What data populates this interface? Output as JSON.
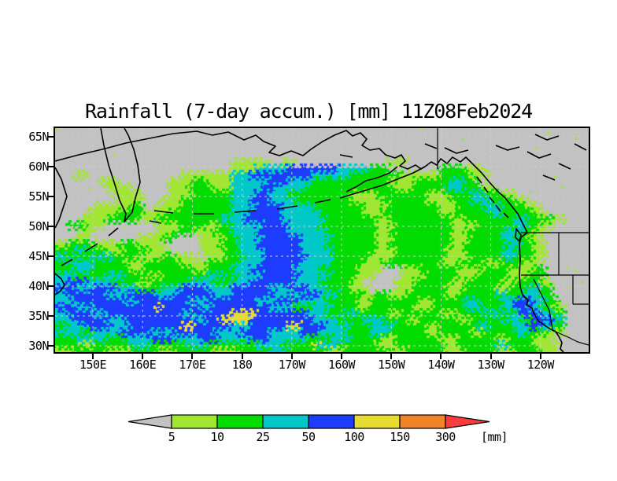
{
  "title": "Rainfall (7-day accum.) [mm] 11Z08Feb2024",
  "axes": {
    "lat_labels": [
      "65N",
      "60N",
      "55N",
      "50N",
      "45N",
      "40N",
      "35N",
      "30N"
    ],
    "lat_values": [
      65,
      60,
      55,
      50,
      45,
      40,
      35,
      30
    ],
    "lon_labels": [
      "150E",
      "160E",
      "170E",
      "180",
      "170W",
      "160W",
      "150W",
      "140W",
      "130W",
      "120W"
    ],
    "lon_values_deg_east": [
      150,
      160,
      170,
      180,
      190,
      200,
      210,
      220,
      230,
      240
    ]
  },
  "colorbar": {
    "tick_labels": [
      "5",
      "10",
      "25",
      "50",
      "100",
      "150",
      "300"
    ],
    "unit": "[mm]",
    "below_color": "#c2c2c2",
    "segment_colors": [
      "#a0e632",
      "#00dc00",
      "#00c8c8",
      "#1e3cff",
      "#e6dc32",
      "#f08228"
    ],
    "above_color": "#fa3c3c"
  },
  "map": {
    "background": "#c2c2c2",
    "grid_color": "#cdcdcd",
    "coast_color": "#000000",
    "palette": {
      ".": "#c2c2c2",
      "a": "#a0e632",
      "b": "#00dc00",
      "c": "#00c8c8",
      "d": "#1e3cff",
      "e": "#e6dc32",
      "f": "#f08228",
      "g": "#fa3c3c"
    },
    "field_rows": [
      "",
      "",
      "",
      "",
      "",
      "............................aaaaaa..aa...............aaa",
      "............................aaaacccccddddddddcccccbbb........bbbbaaa",
      "...aa...............aaaaaaaacccddddddddddccccccbbbbbbbbaaaaaabbbbbaaa",
      ".......aaa........aaaabbaaaaccccccdddccccbbbbbbbbbbbbaaaabbbbbbccbb",
      "........aaaa......aaabbbbaaacccccddcccccbbbbbbbbbbbbbbaaabbbbbcccbbbaa",
      ".........aaaaa....aaaabbbbbbccccddcccbbbbbbbbbbaaaabbbbbbbbaaabbbbccbbbaa",
      "..........aaaa...aaabbbbbbbbcccdddccccbbbbbbbbbaaaaabbbbbbbaaaabbbcccbbbbaa",
      "......aaaaaabb..aaaabbbbbbbbccccddddcccccbbbbbbbbaaaabbbbbbbbaaabbbbcccbbbbaa",
      ".....aaaaabbbbaaaabbbbbbbbbbcccdddddccccccbbbbbbbaaabbbbbbbbbaabbbbbbccbbbbbaa",
      "....aaaabbbbbaaabbbbbbbbbbccccddddddcccccccbbbbbbbbaabbbbbbbbbbaabbbbbbbbccbbbbaa",
      "..bbbaaa........aaaabbbbaabbcccccddddcccccbbbbbbbbbaaabbbbbbbbbaaaabbbbbbccbbaa",
      "....aa..........aaabbbaaabbbccccdddddccccccbbbbbbbbaabbbbbbbbbbaabbbbbbcccbbaa",
      "...aa........aaaabb....aaaabbccccddddddcccccbbbbbbbaaabbbbbbbbbaaabbbbbccbbaa",
      "aabbbbaaaabbbaaaa......aaabbbcccdddddddccccbbbbbbbbaabbbbbbbbbbaabbbbbbbccbbaa",
      "bbbccbbbaaabbbbaaa.....aaaabbccccddddddcccccbbbbbbbaaabbbbbbbbaaabbbbbbccbbbaa",
      "ccbbbbcccbbbbaaaabbaaa..aaabbbcccdddddddccccbbbbbbaaaabbbbbbbbaaaabbbbbccbbbaa",
      "bbccccbbbbbaaabbbbbbaaaabbbbbccccddddddcccccbbbbbaaabbbbbbbbbaaabbbbaaabbbaaa",
      "bbbcccbbbbbbaabbbbbbbbaabbbbcccdddddddccccbbbbbbaaaa...aaabbbbbbaaaabbbbaaaabb",
      "cccbbbbbcccbbbbaabbbbbbbcccbbccccddddddcccccbbbbaaa....aaaabbbbbaaabbbbbaaabbb",
      "ccdddccccbbbbaabbbbbbccccbbbcccdddddddccccbbbbbaa.....aaabbbbbbaabbbbbbaabbbbaa",
      "dddcccddddcccbbbbcccddddccccddddddcccdddcccbbbbaaa....aaabbbbbaaabbbbbaabbbccbb",
      "ccddddddcccdddddcccddddddcccdddddddccccdddcccbbbbaabbaaabbbbbbaabbbbbbccbbcccbb",
      "cccddddddddccddddddddcccddddddddcccddddccccbbbbbaabbbbbbbbaabbbbbccbbbbccdddccbb",
      "dddcccddddddddddeddddddccdddddddddccccbbbcccbbbbaabbbbbbbaaabbbbbcccbbbccddccbbaa",
      "ccddddccddddddddddddccddddddeeeeddddddddcccbbbccbbbbbaabbbbbbaaabbbbcccbbcdddccbb",
      "cccdddddcccdddddddddddccddeeeeeddddddddddccccbbbbcccbbbbaabbbbbbaabbbbbcccbbdddcc",
      "bbcccddddcccddddddddeeddddddcccddddddeeddddccccbbbccccbbbbbaabbbbbbccbbbbccddccbb",
      "ccccbbccccdddddccccddddddccccdddddcccccdddccccbbbbcccbbbbbbaabbbbbaabbbbbccbbbaaa",
      "bbbcccccbbbccccddddccccdddcccccdddccccccbbbbcccbbbbbaabbbbbbbaaabbbbbbaabbbbaaa",
      "bbbbaabbbbbbcccbbbbbbcccbbbbbbbbccccbbbbbecccbbbbbbaaabbbbbbbbaabbbbbbccbbbbaaaa",
      "aaabbbbbaaaabbbbaaabbbbbbaaaabbbbbcccbbbbbbaaabbbbbbbaaabbbbbbaaabbbbbaaabbbbaaa"
    ],
    "coast_paths": [
      "M0,42 L30,34 L60,27 L90,19 L120,13 L150,7 L180,4 L200,9 L220,5 L240,15 L255,9 L265,17 L280,23 L272,31 L285,35 L300,29 L315,35 L325,27 L340,17 L355,9 L370,3 L378,10 L388,6 L396,14 L390,22 L400,28 L412,26 L420,34 L432,38 L440,34 L445,42 L438,48 L448,52 L458,47 L465,52 L470,49",
      "M58,0 L62,22 L68,47 L76,72 L82,92 L90,109 L88,119 L98,107 L102,89 L108,69 L105,47 L100,27 L93,9 L88,0",
      "M0,50 L8,65 L15,87 L5,117 L0,127",
      "M80,127 L68,137 M54,147 L38,157 M22,167 L8,175",
      "M0,185 L8,192 L12,200 L6,208 L0,212",
      "M362,34 L378,37",
      "M470,49 L455,57 L435,65 L415,73 L395,79 L375,85 L362,89",
      "M435,49 L425,57 L410,63 L395,67 L382,75 L370,81",
      "M350,91 L330,95 M308,99 L282,103 M255,105 L228,107 M202,109 L176,109 M150,108 L126,105 M120,118 L135,121",
      "M470,49 L478,43 L485,47 L490,39 L498,45 L505,37 L515,43 L522,37 L530,45 L542,57 L552,69 L562,80 L572,89 L580,99 L588,109 L594,121 L600,133 L592,139 L590,147 L591,167 L590,187 L591,202 L594,212 L601,219 L599,225 L606,229 L608,235 L614,245 L622,251 L630,256 L636,259 L640,265 L644,273 L642,281 L646,285",
      "M586,128 L592,136 L590,144 L585,139 Z",
      "M545,75 L550,82 M552,88 L558,95 M560,98 L566,106 M570,108 L576,114 M536,62 L542,70",
      "M495,25 L510,32 L525,28 M470,20 L485,26",
      "M600,30 L615,38 L630,33 M640,45 L655,52 M620,60 L635,66 M660,20 L675,28 M610,8 L625,15 L640,10 M560,22 L575,28 L590,24"
    ],
    "border_paths": [
      "M486,0 L486,52",
      "M592,133 L678,133",
      "M640,133 L640,187",
      "M592,187 L678,187",
      "M608,192 L628,232 L632,256",
      "M658,187 L658,224 M658,224 L678,224",
      "M636,259 L652,266 L664,272 L678,276"
    ]
  },
  "chart_data": {
    "type": "heatmap",
    "title": "Rainfall (7-day accum.) [mm] 11Z08Feb2024",
    "x_ticks": [
      "150E",
      "160E",
      "170E",
      "180",
      "170W",
      "160W",
      "150W",
      "140W",
      "130W",
      "120W"
    ],
    "y_ticks": [
      "65N",
      "60N",
      "55N",
      "50N",
      "45N",
      "40N",
      "35N",
      "30N"
    ],
    "levels_mm": [
      5,
      10,
      25,
      50,
      100,
      150,
      300
    ],
    "level_colors": [
      "#a0e632",
      "#00dc00",
      "#00c8c8",
      "#1e3cff",
      "#e6dc32",
      "#f08228",
      "#fa3c3c"
    ],
    "units": "mm",
    "legend_position": "bottom",
    "grid": "dashed graticule every 5 deg lat / 10 deg lon"
  }
}
